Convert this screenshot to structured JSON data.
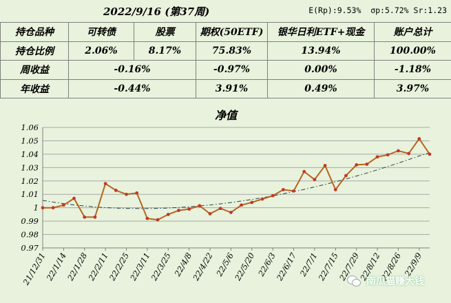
{
  "header": {
    "title": "2022/9/16 (第37周)",
    "stats": "E(Rp):9.53%  σp:5.72% Sr:1.23"
  },
  "table": {
    "rows": [
      [
        "持仓品种",
        "可转债",
        "股票",
        "期权(50ETF)",
        "银华日利ETF+现金",
        "账户总计"
      ],
      [
        "持仓比例",
        "2.06%",
        "8.17%",
        "75.83%",
        "13.94%",
        "100.00%"
      ],
      [
        "周收益",
        "-0.16%",
        "",
        "-0.97%",
        "0.00%",
        "-1.18%"
      ],
      [
        "年收益",
        "-0.44%",
        "",
        "3.91%",
        "0.49%",
        "3.97%"
      ]
    ]
  },
  "chart_data": {
    "type": "line",
    "title": "净值",
    "ylim": [
      0.97,
      1.06
    ],
    "yticks": [
      "0.97",
      "0.98",
      "0.99",
      "1",
      "1.01",
      "1.02",
      "1.03",
      "1.04",
      "1.05",
      "1.06"
    ],
    "xtick_labels": [
      "21/12/31",
      "22/1/14",
      "22/1/28",
      "22/2/11",
      "22/2/25",
      "22/3/11",
      "22/3/25",
      "22/4/8",
      "22/4/22",
      "22/5/6",
      "22/5/20",
      "22/6/3",
      "22/6/17",
      "22/7/1",
      "22/7/15",
      "22/7/29",
      "22/8/12",
      "22/8/26",
      "22/9/9"
    ],
    "series": [
      {
        "color": "#c0392b",
        "values": [
          1.0,
          1.0,
          1.002,
          1.007,
          0.993,
          0.993,
          1.018,
          1.013,
          1.01,
          1.011,
          0.992,
          0.991,
          0.995,
          0.998,
          0.999,
          1.0015,
          0.9955,
          0.9995,
          0.9965,
          1.002,
          1.004,
          1.0065,
          1.009,
          1.0135,
          1.0125,
          1.027,
          1.021,
          1.0315,
          1.0135,
          1.024,
          1.032,
          1.0325,
          1.038,
          1.0395,
          1.0425,
          1.0405,
          1.0515,
          1.04
        ]
      },
      {
        "style": "dash-dot trendline",
        "color": "#1f3f4a",
        "values": [
          1.0055,
          1.0042,
          1.0031,
          1.0021,
          1.0013,
          1.0006,
          1.0001,
          0.9997,
          0.9995,
          0.9994,
          0.9994,
          0.9995,
          0.9998,
          1.0002,
          1.0007,
          1.0013,
          1.0021,
          1.0029,
          1.0039,
          1.005,
          1.0062,
          1.0075,
          1.0089,
          1.0104,
          1.012,
          1.0137,
          1.0155,
          1.0174,
          1.0194,
          1.0215,
          1.0237,
          1.0259,
          1.0283,
          1.0308,
          1.0333,
          1.036,
          1.0387,
          1.041
        ]
      }
    ],
    "grid": "horizontal"
  },
  "watermark": {
    "text": "南瓜猫赚大钱",
    "icon": "wechat-icon"
  }
}
